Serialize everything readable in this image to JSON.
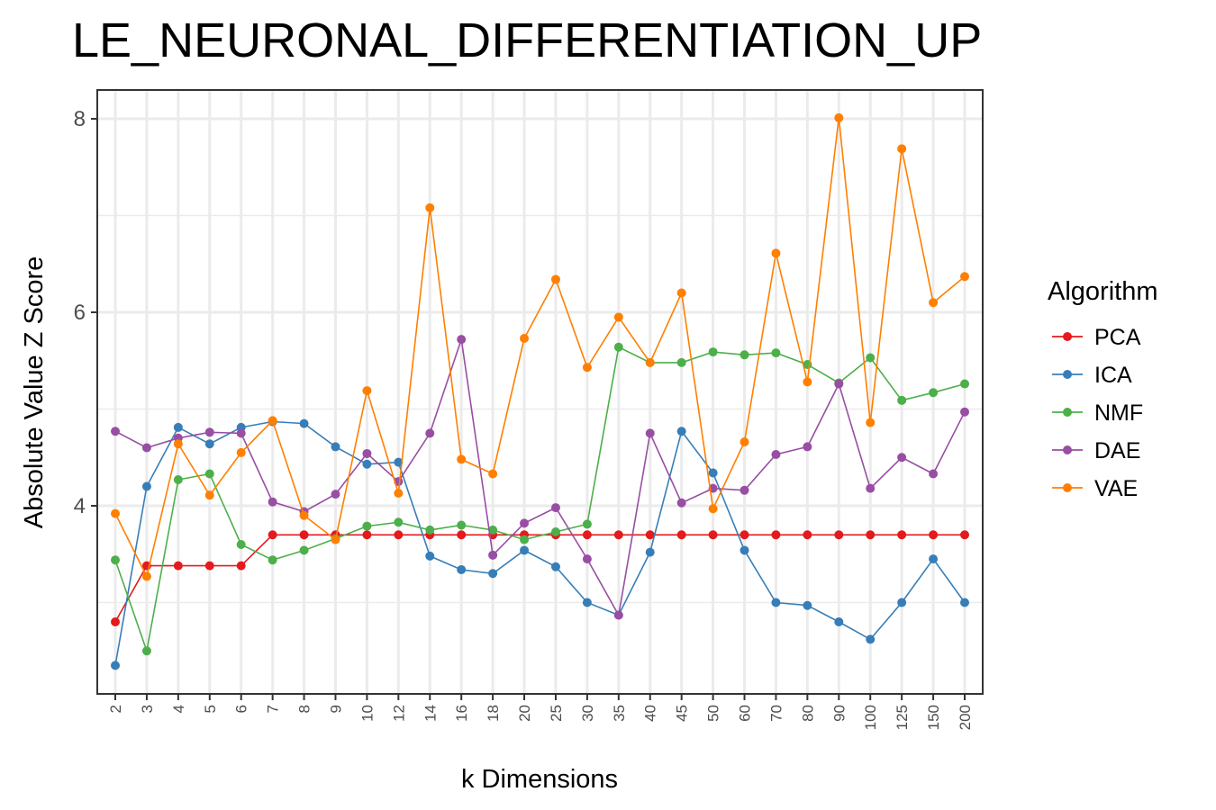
{
  "chart_data": {
    "type": "line",
    "title": "LE_NEURONAL_DIFFERENTIATION_UP",
    "xlabel": "k Dimensions",
    "ylabel": "Absolute Value Z Score",
    "categories": [
      "2",
      "3",
      "4",
      "5",
      "6",
      "7",
      "8",
      "9",
      "10",
      "12",
      "14",
      "16",
      "18",
      "20",
      "25",
      "30",
      "35",
      "40",
      "45",
      "50",
      "60",
      "70",
      "80",
      "90",
      "100",
      "125",
      "150",
      "200"
    ],
    "y_ticks": [
      4,
      6,
      8
    ],
    "ylim": [
      1.95,
      8.3
    ],
    "grid": true,
    "legend": {
      "title": "Algorithm",
      "position": "right"
    },
    "series": [
      {
        "name": "PCA",
        "color": "#E41A1C",
        "values": [
          2.8,
          3.38,
          3.38,
          3.38,
          3.38,
          3.7,
          3.7,
          3.7,
          3.7,
          3.7,
          3.7,
          3.7,
          3.7,
          3.7,
          3.7,
          3.7,
          3.7,
          3.7,
          3.7,
          3.7,
          3.7,
          3.7,
          3.7,
          3.7,
          3.7,
          3.7,
          3.7,
          3.7
        ]
      },
      {
        "name": "ICA",
        "color": "#377EB8",
        "values": [
          2.35,
          4.2,
          4.81,
          4.64,
          4.81,
          4.87,
          4.85,
          4.61,
          4.43,
          4.45,
          3.48,
          3.34,
          3.3,
          3.54,
          3.37,
          3.0,
          2.87,
          3.52,
          4.77,
          4.34,
          3.54,
          3.0,
          2.97,
          2.8,
          2.62,
          3.0,
          3.45,
          3.0
        ]
      },
      {
        "name": "NMF",
        "color": "#4DAF4A",
        "values": [
          3.44,
          2.5,
          4.27,
          4.33,
          3.6,
          3.44,
          3.54,
          3.66,
          3.79,
          3.83,
          3.75,
          3.8,
          3.75,
          3.65,
          3.73,
          3.81,
          5.64,
          5.48,
          5.48,
          5.59,
          5.56,
          5.58,
          5.46,
          5.27,
          5.53,
          5.09,
          5.17,
          5.26
        ]
      },
      {
        "name": "DAE",
        "color": "#984EA3",
        "values": [
          4.77,
          4.6,
          4.7,
          4.76,
          4.75,
          4.04,
          3.94,
          4.12,
          4.54,
          4.25,
          4.75,
          5.72,
          3.49,
          3.82,
          3.98,
          3.45,
          2.87,
          4.75,
          4.03,
          4.18,
          4.16,
          4.53,
          4.61,
          5.26,
          4.18,
          4.5,
          4.33,
          4.97
        ]
      },
      {
        "name": "VAE",
        "color": "#FF7F00",
        "values": [
          3.92,
          3.27,
          4.64,
          4.11,
          4.55,
          4.88,
          3.9,
          3.65,
          5.19,
          4.13,
          7.08,
          4.48,
          4.33,
          5.73,
          6.34,
          5.43,
          5.95,
          5.48,
          6.2,
          3.97,
          4.66,
          6.61,
          5.28,
          8.01,
          4.86,
          7.69,
          6.1,
          6.37
        ]
      }
    ]
  }
}
